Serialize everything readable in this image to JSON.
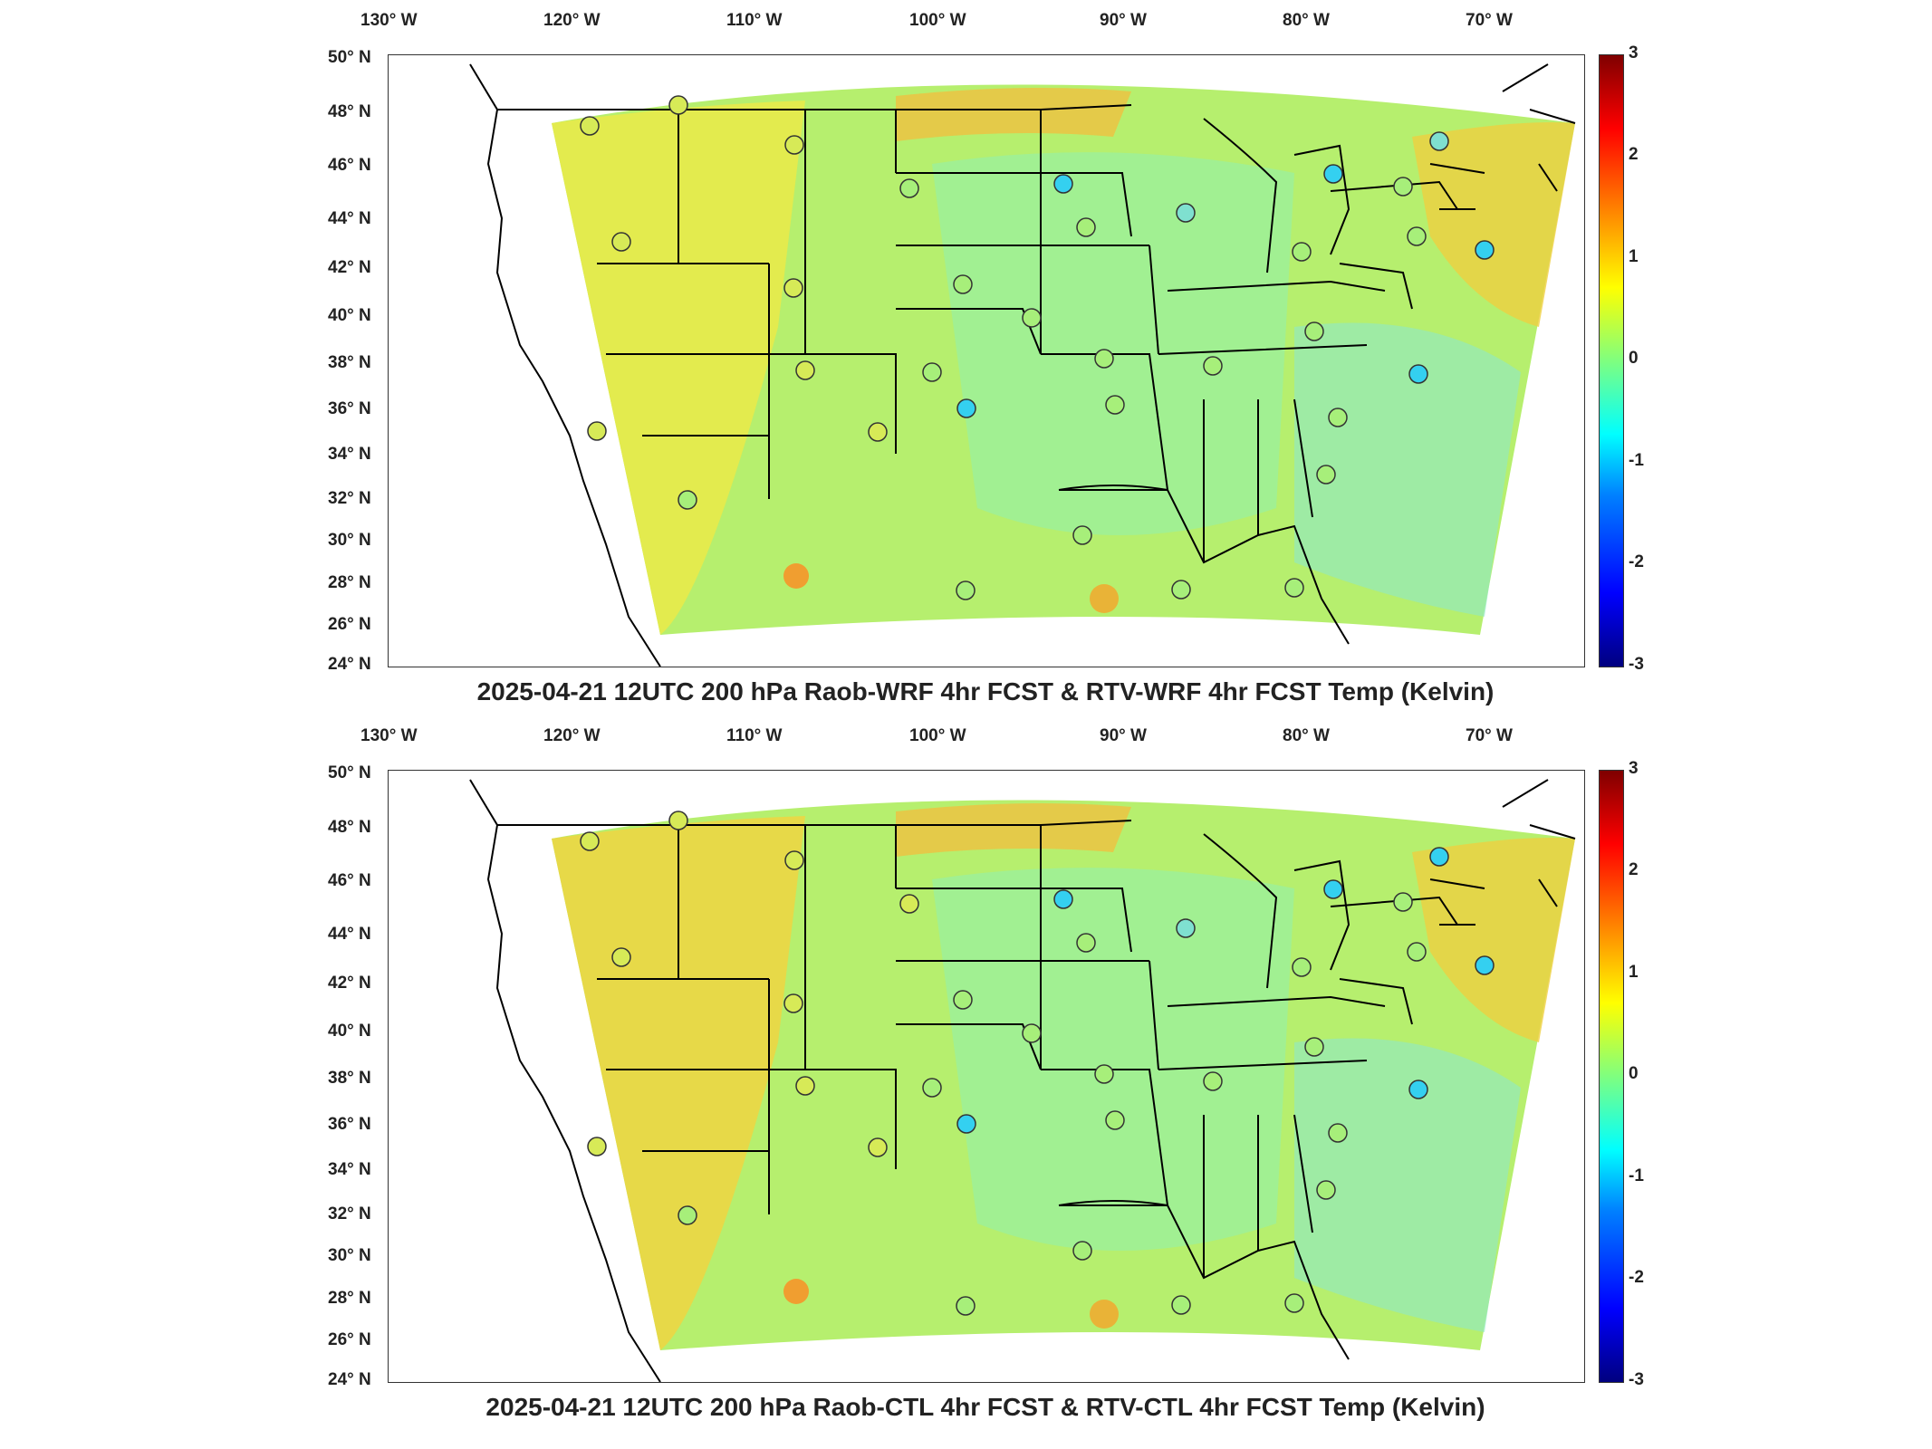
{
  "maps": [
    {
      "title": "2025-04-21 12UTC 200 hPa Raob-WRF 4hr FCST & RTV-WRF 4hr FCST Temp (Kelvin)",
      "lon_labels": [
        "130° W",
        "120° W",
        "110° W",
        "100° W",
        "90° W",
        "80° W",
        "70° W"
      ],
      "lat_labels": [
        "50° N",
        "48° N",
        "46° N",
        "44° N",
        "42° N",
        "40° N",
        "38° N",
        "36° N",
        "34° N",
        "32° N",
        "30° N",
        "28° N",
        "26° N",
        "24° N"
      ],
      "colorbar_labels": [
        "3",
        "2",
        "1",
        "0",
        "-1",
        "-2",
        "-3"
      ]
    },
    {
      "title": "2025-04-21 12UTC 200 hPa Raob-CTL 4hr FCST & RTV-CTL 4hr FCST Temp (Kelvin)",
      "lon_labels": [
        "130° W",
        "120° W",
        "110° W",
        "100° W",
        "90° W",
        "80° W",
        "70° W"
      ],
      "lat_labels": [
        "50° N",
        "48° N",
        "46° N",
        "44° N",
        "42° N",
        "40° N",
        "38° N",
        "36° N",
        "34° N",
        "32° N",
        "30° N",
        "28° N",
        "26° N",
        "24° N"
      ],
      "colorbar_labels": [
        "3",
        "2",
        "1",
        "0",
        "-1",
        "-2",
        "-3"
      ]
    }
  ],
  "colorbar": {
    "min": -3,
    "max": 3,
    "colors": [
      "#00007f",
      "#0000ff",
      "#0080ff",
      "#00ffff",
      "#7fff7f",
      "#ffff00",
      "#ff8000",
      "#ff0000",
      "#7f0000"
    ]
  }
}
